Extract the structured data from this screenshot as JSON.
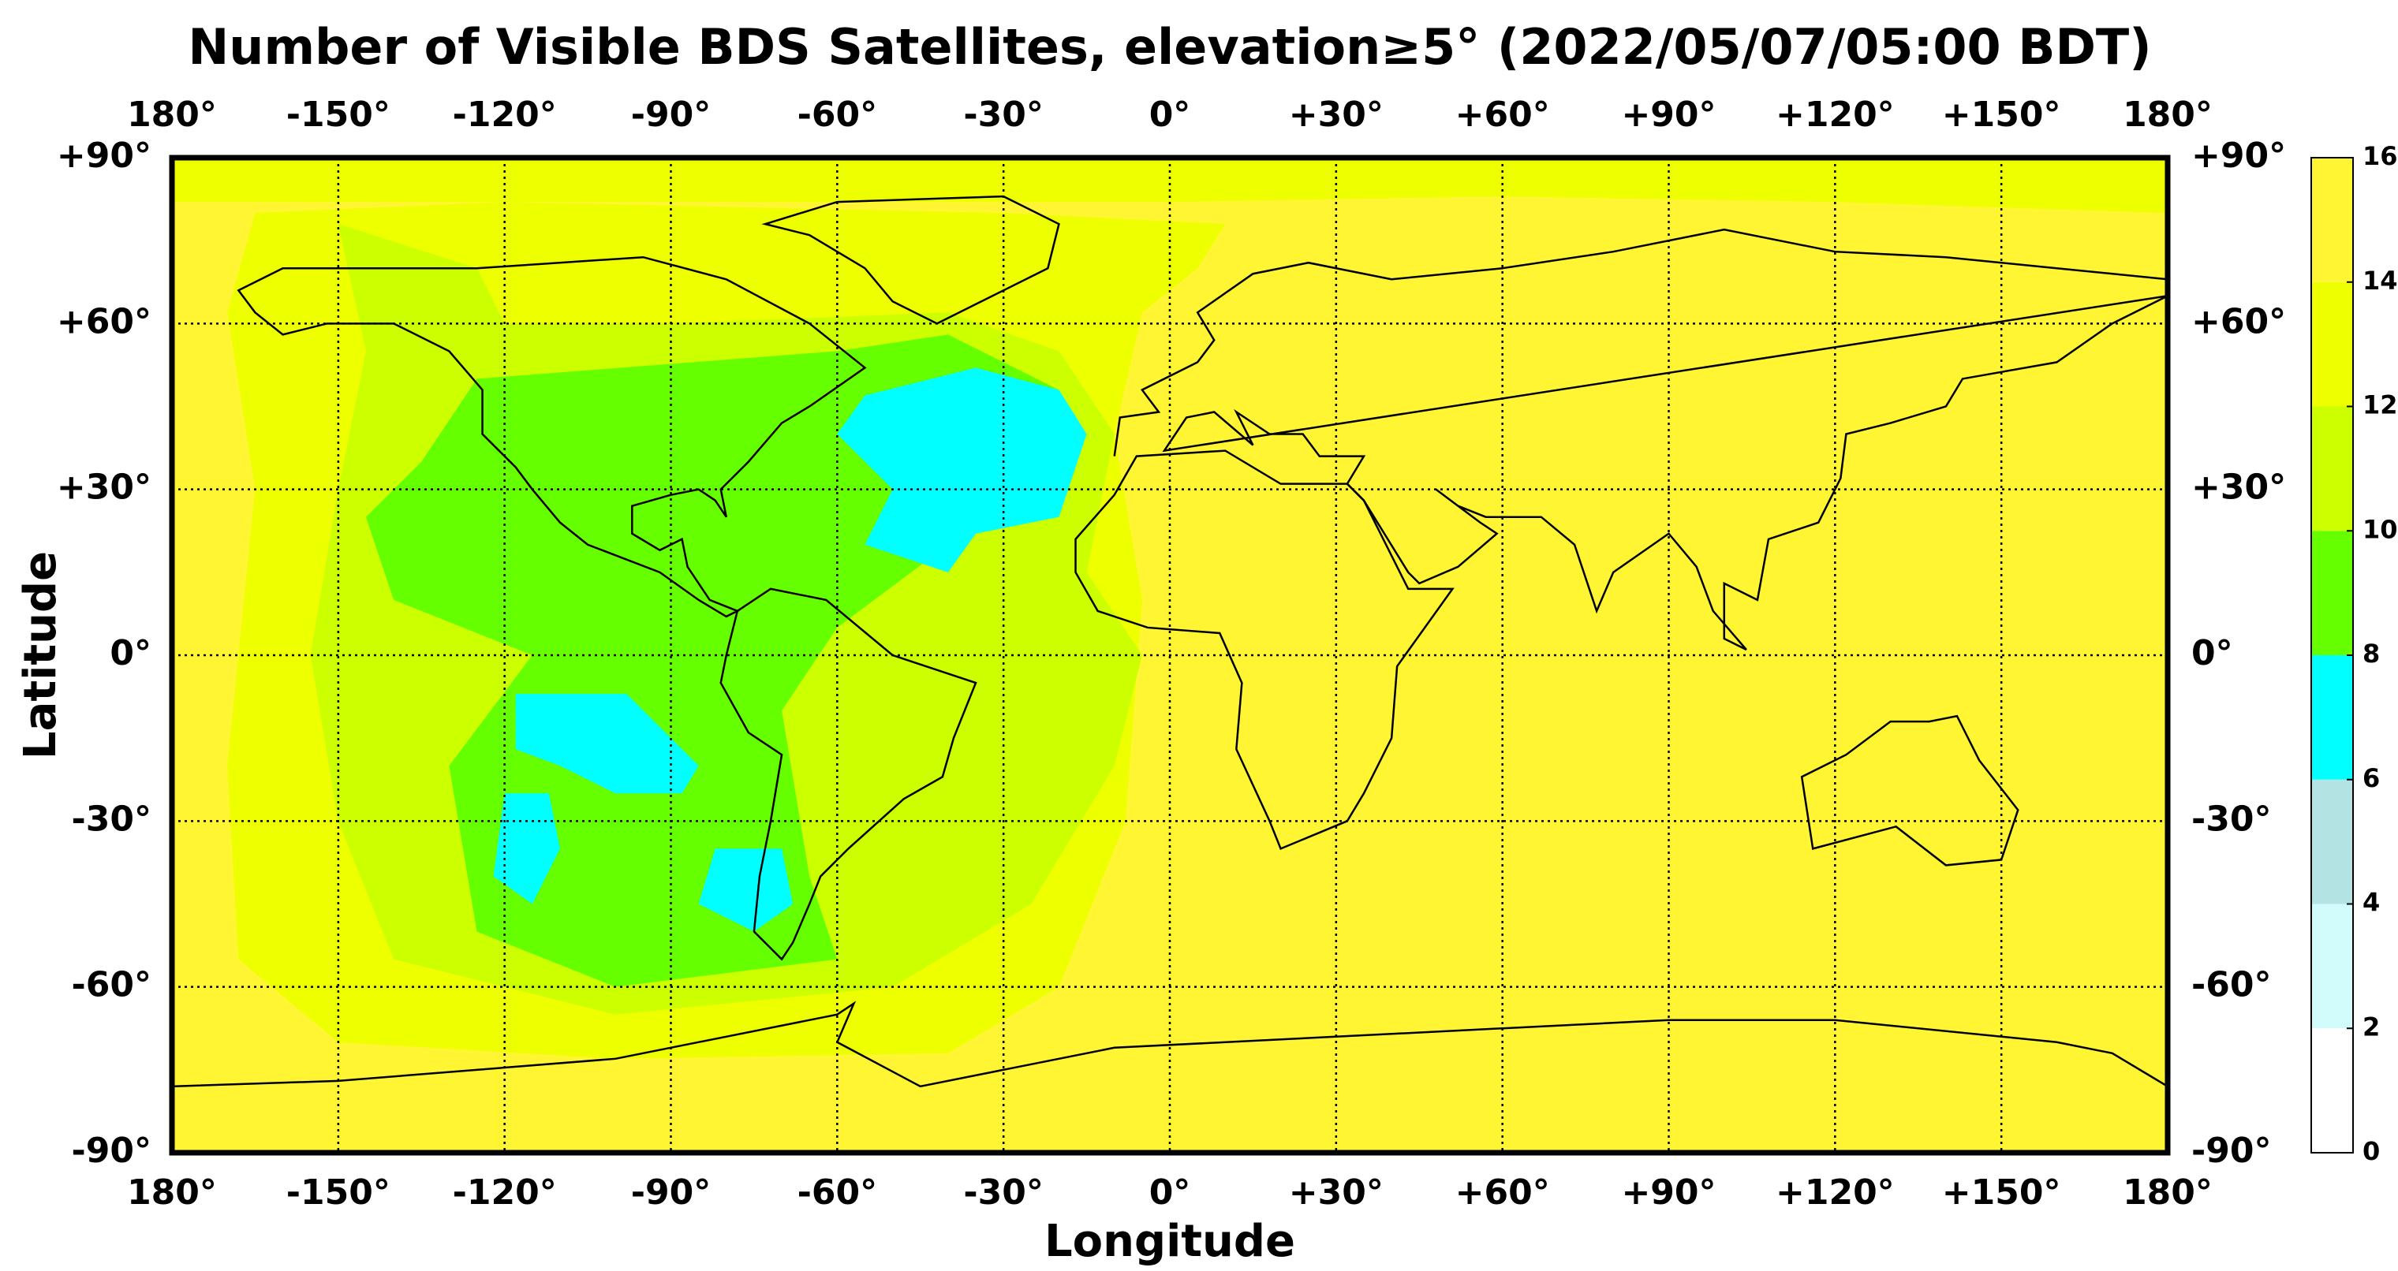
{
  "chart_data": {
    "type": "heatmap",
    "title": "Number of Visible BDS Satellites, elevation≥5° (2022/05/07/05:00 BDT)",
    "xlabel": "Longitude",
    "ylabel": "Latitude",
    "xlim": [
      -180,
      180
    ],
    "ylim": [
      -90,
      90
    ],
    "xticks": [
      {
        "value": -180,
        "label": "180°"
      },
      {
        "value": -150,
        "label": "-150°"
      },
      {
        "value": -120,
        "label": "-120°"
      },
      {
        "value": -90,
        "label": "-90°"
      },
      {
        "value": -60,
        "label": "-60°"
      },
      {
        "value": -30,
        "label": "-30°"
      },
      {
        "value": 0,
        "label": "0°"
      },
      {
        "value": 30,
        "label": "+30°"
      },
      {
        "value": 60,
        "label": "+60°"
      },
      {
        "value": 90,
        "label": "+90°"
      },
      {
        "value": 120,
        "label": "+120°"
      },
      {
        "value": 150,
        "label": "+150°"
      },
      {
        "value": 180,
        "label": "180°"
      }
    ],
    "yticks": [
      {
        "value": 90,
        "label": "+90°"
      },
      {
        "value": 60,
        "label": "+60°"
      },
      {
        "value": 30,
        "label": "+30°"
      },
      {
        "value": 0,
        "label": "0°"
      },
      {
        "value": -30,
        "label": "-30°"
      },
      {
        "value": -60,
        "label": "-60°"
      },
      {
        "value": -90,
        "label": "-90°"
      }
    ],
    "grid": true,
    "colorbar": {
      "lim": [
        0,
        16
      ],
      "ticks": [
        0,
        2,
        4,
        6,
        8,
        10,
        12,
        14,
        16
      ],
      "colors": [
        "#ffffff",
        "#d2fcfc",
        "#b3e3e3",
        "#00ffff",
        "#66ff00",
        "#ccff00",
        "#eeff00",
        "#fff533"
      ]
    },
    "background_value": 15,
    "regions": [
      {
        "value": 13,
        "polygon": [
          [
            -165,
            80
          ],
          [
            -120,
            82
          ],
          [
            -30,
            80
          ],
          [
            10,
            78
          ],
          [
            5,
            70
          ],
          [
            -5,
            62
          ],
          [
            -10,
            40
          ],
          [
            -5,
            10
          ],
          [
            -8,
            -30
          ],
          [
            -20,
            -60
          ],
          [
            -40,
            -72
          ],
          [
            -100,
            -73
          ],
          [
            -150,
            -70
          ],
          [
            -168,
            -55
          ],
          [
            -170,
            -20
          ],
          [
            -165,
            30
          ],
          [
            -170,
            62
          ]
        ]
      },
      {
        "value": 13,
        "polygon": [
          [
            -180,
            90
          ],
          [
            180,
            90
          ],
          [
            180,
            80
          ],
          [
            120,
            82
          ],
          [
            60,
            83
          ],
          [
            0,
            82
          ],
          [
            -180,
            82
          ]
        ]
      },
      {
        "value": 11,
        "polygon": [
          [
            -150,
            78
          ],
          [
            -125,
            70
          ],
          [
            -120,
            60
          ],
          [
            -90,
            60
          ],
          [
            -40,
            62
          ],
          [
            -20,
            55
          ],
          [
            -10,
            40
          ],
          [
            -15,
            15
          ],
          [
            -5,
            0
          ],
          [
            -10,
            -20
          ],
          [
            -25,
            -45
          ],
          [
            -50,
            -60
          ],
          [
            -100,
            -65
          ],
          [
            -140,
            -55
          ],
          [
            -150,
            -30
          ],
          [
            -155,
            0
          ],
          [
            -150,
            30
          ],
          [
            -145,
            55
          ]
        ]
      },
      {
        "value": 9,
        "polygon": [
          [
            -125,
            50
          ],
          [
            -60,
            55
          ],
          [
            -40,
            58
          ],
          [
            -20,
            48
          ],
          [
            -20,
            30
          ],
          [
            -40,
            20
          ],
          [
            -60,
            5
          ],
          [
            -70,
            -10
          ],
          [
            -65,
            -40
          ],
          [
            -60,
            -55
          ],
          [
            -100,
            -60
          ],
          [
            -125,
            -50
          ],
          [
            -130,
            -20
          ],
          [
            -115,
            0
          ],
          [
            -140,
            10
          ],
          [
            -145,
            25
          ],
          [
            -135,
            35
          ]
        ]
      },
      {
        "value": 7,
        "polygon": [
          [
            -55,
            47
          ],
          [
            -35,
            52
          ],
          [
            -20,
            48
          ],
          [
            -15,
            40
          ],
          [
            -20,
            25
          ],
          [
            -35,
            22
          ],
          [
            -40,
            15
          ],
          [
            -55,
            20
          ],
          [
            -50,
            30
          ],
          [
            -60,
            40
          ]
        ]
      },
      {
        "value": 7,
        "polygon": [
          [
            -118,
            -7
          ],
          [
            -98,
            -7
          ],
          [
            -90,
            -15
          ],
          [
            -85,
            -20
          ],
          [
            -88,
            -25
          ],
          [
            -100,
            -25
          ],
          [
            -110,
            -20
          ],
          [
            -118,
            -17
          ]
        ]
      },
      {
        "value": 7,
        "polygon": [
          [
            -120,
            -25
          ],
          [
            -112,
            -25
          ],
          [
            -110,
            -35
          ],
          [
            -115,
            -45
          ],
          [
            -122,
            -40
          ]
        ]
      },
      {
        "value": 7,
        "polygon": [
          [
            -82,
            -35
          ],
          [
            -70,
            -35
          ],
          [
            -68,
            -45
          ],
          [
            -75,
            -50
          ],
          [
            -85,
            -45
          ]
        ]
      }
    ]
  }
}
